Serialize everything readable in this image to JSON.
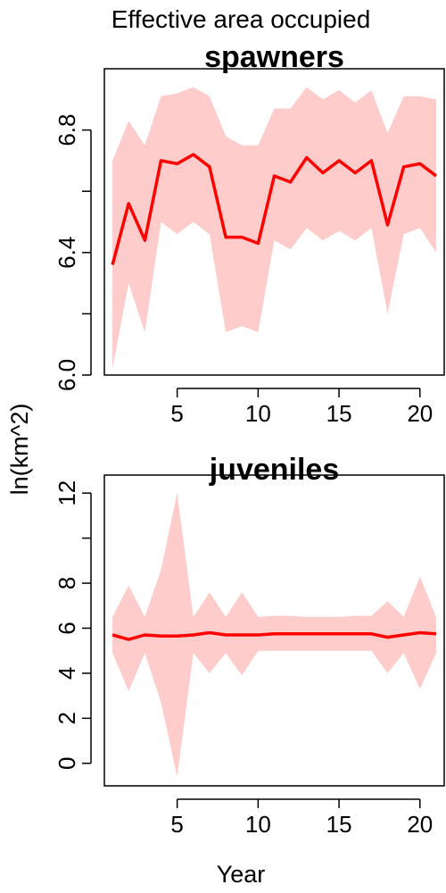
{
  "figure": {
    "title": "Effective area occupied",
    "xlabel": "Year",
    "ylabel": "ln(km^2)"
  },
  "colors": {
    "line": "#ff0000",
    "band": "#ffcccc",
    "frame": "#000000"
  },
  "chart_data": [
    {
      "type": "line",
      "title": "spawners",
      "xlabel": "Year",
      "ylabel": "ln(km^2)",
      "xlim": [
        0.5,
        21.5
      ],
      "ylim": [
        6.0,
        7.0
      ],
      "xticks": [
        5,
        10,
        15,
        20
      ],
      "yticks": [
        6.0,
        6.2,
        6.4,
        6.6,
        6.8
      ],
      "ytick_labels": [
        "6.0",
        "",
        "6.4",
        "",
        "6.8"
      ],
      "grid": false,
      "series": [
        {
          "x": [
            1,
            2,
            3,
            4,
            5,
            6,
            7,
            8,
            9,
            10,
            11,
            12,
            13,
            14,
            15,
            16,
            17,
            18,
            19,
            20,
            21
          ],
          "y": [
            6.36,
            6.56,
            6.44,
            6.7,
            6.69,
            6.72,
            6.68,
            6.45,
            6.45,
            6.43,
            6.65,
            6.63,
            6.71,
            6.66,
            6.7,
            6.66,
            6.7,
            6.49,
            6.68,
            6.69,
            6.65
          ],
          "lower": [
            6.02,
            6.3,
            6.14,
            6.5,
            6.46,
            6.5,
            6.46,
            6.14,
            6.16,
            6.14,
            6.44,
            6.41,
            6.48,
            6.44,
            6.47,
            6.44,
            6.48,
            6.2,
            6.46,
            6.48,
            6.4
          ],
          "upper": [
            6.7,
            6.83,
            6.75,
            6.91,
            6.92,
            6.94,
            6.91,
            6.78,
            6.75,
            6.75,
            6.87,
            6.87,
            6.94,
            6.9,
            6.93,
            6.89,
            6.93,
            6.79,
            6.91,
            6.91,
            6.9
          ]
        }
      ]
    },
    {
      "type": "line",
      "title": "juveniles",
      "xlabel": "Year",
      "ylabel": "ln(km^2)",
      "xlim": [
        0.5,
        21.5
      ],
      "ylim": [
        -1.0,
        12.8
      ],
      "xticks": [
        5,
        10,
        15,
        20
      ],
      "yticks": [
        0,
        2,
        4,
        6,
        8,
        10,
        12
      ],
      "ytick_labels": [
        "0",
        "2",
        "4",
        "6",
        "8",
        "",
        "12"
      ],
      "grid": false,
      "series": [
        {
          "x": [
            1,
            2,
            3,
            4,
            5,
            6,
            7,
            8,
            9,
            10,
            11,
            12,
            13,
            14,
            15,
            16,
            17,
            18,
            19,
            20,
            21
          ],
          "y": [
            5.7,
            5.5,
            5.7,
            5.65,
            5.65,
            5.7,
            5.8,
            5.7,
            5.7,
            5.7,
            5.75,
            5.75,
            5.75,
            5.75,
            5.75,
            5.75,
            5.75,
            5.6,
            5.7,
            5.8,
            5.75
          ],
          "lower": [
            4.9,
            3.2,
            4.9,
            2.7,
            -0.6,
            4.9,
            4.0,
            4.9,
            3.9,
            5.0,
            5.0,
            5.0,
            5.0,
            5.0,
            5.0,
            5.0,
            5.0,
            4.0,
            4.9,
            3.3,
            4.9
          ],
          "upper": [
            6.5,
            7.9,
            6.5,
            8.6,
            12.0,
            6.5,
            7.6,
            6.5,
            7.6,
            6.5,
            6.55,
            6.55,
            6.5,
            6.5,
            6.5,
            6.55,
            6.55,
            7.2,
            6.5,
            8.3,
            6.5
          ]
        }
      ]
    }
  ]
}
